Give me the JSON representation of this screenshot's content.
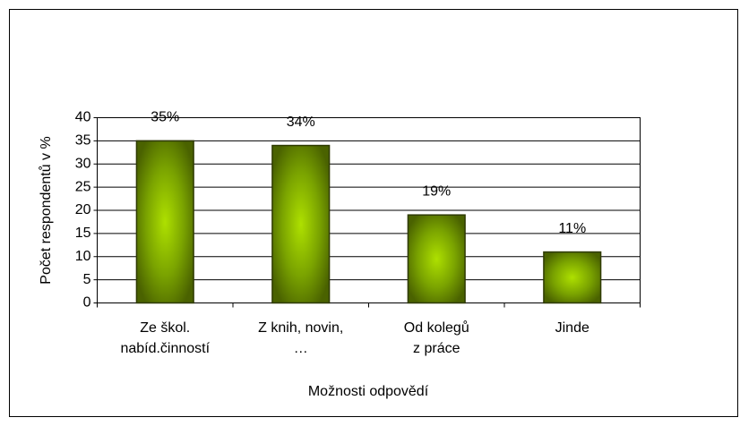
{
  "chart_data": {
    "type": "bar",
    "categories": [
      [
        "Ze škol.",
        "nabíd.činností"
      ],
      [
        "Z knih, novin,",
        "…"
      ],
      [
        "Od kolegů",
        "z práce"
      ],
      [
        "Jinde"
      ]
    ],
    "values": [
      35,
      34,
      19,
      11
    ],
    "value_labels": [
      "35%",
      "34%",
      "19%",
      "11%"
    ],
    "color": "#8cbf00",
    "ylabel": "Počet respondentů v %",
    "xlabel": "Možnosti odpovědí",
    "ylim": [
      0,
      40
    ],
    "yticks": [
      0,
      5,
      10,
      15,
      20,
      25,
      30,
      35,
      40
    ],
    "grid": true
  }
}
